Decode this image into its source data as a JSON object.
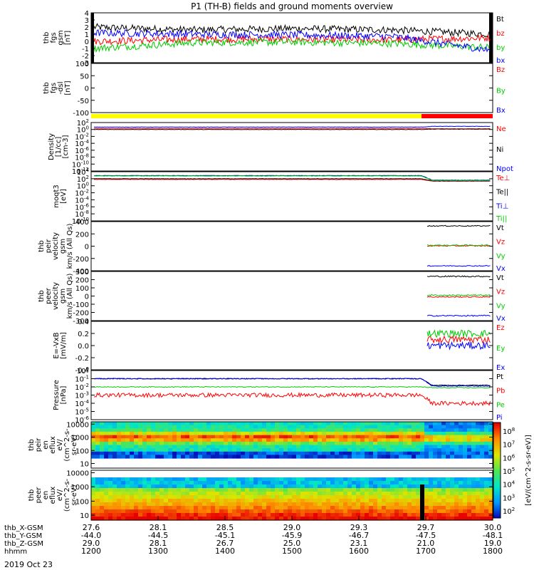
{
  "chart_data": {
    "type": "line",
    "title": "P1 (TH-B) fields and ground moments overview",
    "x_range": [
      1200,
      1800
    ],
    "x_axis": {
      "rows": [
        {
          "label": "thb_X-GSM",
          "values": [
            "27.6",
            "28.1",
            "28.5",
            "29.0",
            "29.3",
            "29.7",
            "30.0"
          ]
        },
        {
          "label": "thb_Y-GSM",
          "values": [
            "-44.0",
            "-44.5",
            "-45.1",
            "-45.9",
            "-46.7",
            "-47.5",
            "-48.1"
          ]
        },
        {
          "label": "thb_Z-GSM",
          "values": [
            "29.0",
            "28.1",
            "26.7",
            "25.0",
            "23.1",
            "21.0",
            "19.0"
          ]
        },
        {
          "label": "hhmm",
          "values": [
            "1200",
            "1300",
            "1400",
            "1500",
            "1600",
            "1700",
            "1800"
          ]
        }
      ],
      "date": "2019 Oct 23"
    },
    "colorbar": {
      "label": "[eV/(cm^2-s-sr-eV)]",
      "ticks": [
        "10^8",
        "10^7",
        "10^6",
        "10^5",
        "10^4",
        "10^3",
        "10^2"
      ]
    },
    "panels": [
      {
        "id": "fgs",
        "ylabel": [
          "thb",
          "fgs",
          "gsm",
          "[nT]"
        ],
        "ylim": [
          -3,
          4
        ],
        "yticks": [
          "4",
          "3",
          "2",
          "1",
          "0",
          "-1",
          "-2",
          "-3"
        ],
        "series": [
          {
            "name": "Bt",
            "color": "#000000",
            "level": [
              2.0,
              1.6,
              1.8,
              1.6,
              1.0
            ]
          },
          {
            "name": "bz",
            "color": "#ff0000",
            "level": [
              0.0,
              0.3,
              0.3,
              0.2,
              0.5
            ]
          },
          {
            "name": "by",
            "color": "#00cc00",
            "level": [
              -1.0,
              -0.2,
              -0.1,
              -0.3,
              -0.9
            ]
          },
          {
            "name": "bx",
            "color": "#0000ff",
            "level": [
              1.2,
              1.0,
              0.9,
              0.7,
              -1.3
            ]
          }
        ]
      },
      {
        "id": "fgs_dsl",
        "ylabel": [
          "thb",
          "fgs",
          "-dsl",
          "[nT]"
        ],
        "ylim": [
          -120,
          100
        ],
        "yticks": [
          "100",
          "50",
          "0",
          "-50",
          "-100"
        ],
        "series": [
          {
            "name": "Bz",
            "color": "#ff0000"
          },
          {
            "name": "By",
            "color": "#00cc00"
          },
          {
            "name": "Bx",
            "color": "#0000ff"
          }
        ]
      },
      {
        "id": "density",
        "ylabel": [
          "Density",
          "[1/cc]",
          "[cm-3]"
        ],
        "ylim": [
          -12,
          2
        ],
        "log": true,
        "yticks": [
          "10^2",
          "10^0",
          "10^-2",
          "10^-4",
          "10^-6",
          "10^-8",
          "10^-10",
          "10^-12"
        ],
        "series": [
          {
            "name": "Ne",
            "color": "#ff0000",
            "level": [
              0.3,
              0.2
            ]
          },
          {
            "name": "Ni",
            "color": "#000000",
            "level": [
              0.0,
              0.1
            ]
          },
          {
            "name": "Npot",
            "color": "#0000ff",
            "level": [
              0.7,
              0.9
            ]
          }
        ]
      },
      {
        "id": "temperature",
        "ylabel": [
          "moqt3",
          "[eV]"
        ],
        "ylim": [
          -10,
          4
        ],
        "log": true,
        "yticks": [
          "10^4",
          "10^2",
          "10^0",
          "10^-2",
          "10^-4",
          "10^-6",
          "10^-8",
          "10^-10"
        ],
        "series": [
          {
            "name": "Te⊥",
            "color": "#ff0000",
            "level": [
              1.8,
              1.3
            ]
          },
          {
            "name": "Te||",
            "color": "#000000",
            "level": [
              2.0,
              1.4
            ]
          },
          {
            "name": "Ti⊥",
            "color": "#0000ff",
            "level": [
              2.9,
              1.6
            ]
          },
          {
            "name": "Ti||",
            "color": "#00cc00",
            "level": [
              2.8,
              1.5
            ]
          }
        ]
      },
      {
        "id": "peir_velocity",
        "ylabel": [
          "thb",
          "peir",
          "velocity",
          "gsm",
          "km/s (All Qs)"
        ],
        "ylim": [
          -400,
          400
        ],
        "yticks": [
          "400",
          "200",
          "0",
          "-200",
          "-400"
        ],
        "series": [
          {
            "name": "Vt",
            "color": "#000000",
            "level": 330
          },
          {
            "name": "Vz",
            "color": "#ff0000",
            "level": 5
          },
          {
            "name": "Vy",
            "color": "#00cc00",
            "level": 15
          },
          {
            "name": "Vx",
            "color": "#0000ff",
            "level": -320
          }
        ]
      },
      {
        "id": "peer_velocity",
        "ylabel": [
          "thb",
          "peer",
          "velocity",
          "gsm",
          "km/s (All Qs)"
        ],
        "ylim": [
          -300,
          300
        ],
        "yticks": [
          "300",
          "200",
          "100",
          "0",
          "-100",
          "-200",
          "-300"
        ],
        "series": [
          {
            "name": "Vt",
            "color": "#000000",
            "level": 240
          },
          {
            "name": "Vz",
            "color": "#ff0000",
            "level": -10
          },
          {
            "name": "Vy",
            "color": "#00cc00",
            "level": 10
          },
          {
            "name": "Vx",
            "color": "#0000ff",
            "level": -240
          }
        ]
      },
      {
        "id": "efield",
        "ylabel": [
          "E=-VxB",
          "[mV/m]"
        ],
        "ylim": [
          -0.4,
          0.4
        ],
        "yticks": [
          "0.4",
          "0.2",
          "0.0",
          "-0.2",
          "-0.4"
        ],
        "series": [
          {
            "name": "Ez",
            "color": "#ff0000",
            "level": 0.1
          },
          {
            "name": "Ey",
            "color": "#00cc00",
            "level": 0.2
          },
          {
            "name": "Ex",
            "color": "#0000ff",
            "level": 0.0
          }
        ]
      },
      {
        "id": "pressure",
        "ylabel": [
          "Pressure",
          "[nPa]"
        ],
        "ylim": [
          -6,
          0
        ],
        "log": true,
        "yticks": [
          "10^0",
          "10^-1",
          "10^-2",
          "10^-3",
          "10^-4",
          "10^-5",
          "10^-6"
        ],
        "series": [
          {
            "name": "Pt",
            "color": "#000000",
            "level": [
              -1.0,
              -1.8
            ]
          },
          {
            "name": "Pb",
            "color": "#ff0000",
            "level": [
              -3.0,
              -4.0
            ]
          },
          {
            "name": "Pe",
            "color": "#00cc00",
            "level": [
              -2.0,
              -2.1
            ]
          },
          {
            "name": "Pi",
            "color": "#0000ff",
            "level": [
              -1.0,
              -1.9
            ]
          }
        ]
      },
      {
        "id": "peir_eflux",
        "type": "heatmap",
        "ylabel": [
          "thb",
          "peir",
          "en",
          "eflux",
          "eV/",
          "(cm^2-s-",
          "sr-eV)"
        ],
        "ylim": [
          10,
          10000
        ],
        "yticks": [
          "10000",
          "1000",
          "100",
          "10"
        ]
      },
      {
        "id": "peer_eflux",
        "type": "heatmap",
        "ylabel": [
          "thb",
          "peer",
          "en",
          "eflux",
          "eV/",
          "(cm^2-s-",
          "sr-eV)"
        ],
        "ylim": [
          10,
          10000
        ],
        "yticks": [
          "10000",
          "1000",
          "100",
          "10"
        ]
      }
    ]
  }
}
